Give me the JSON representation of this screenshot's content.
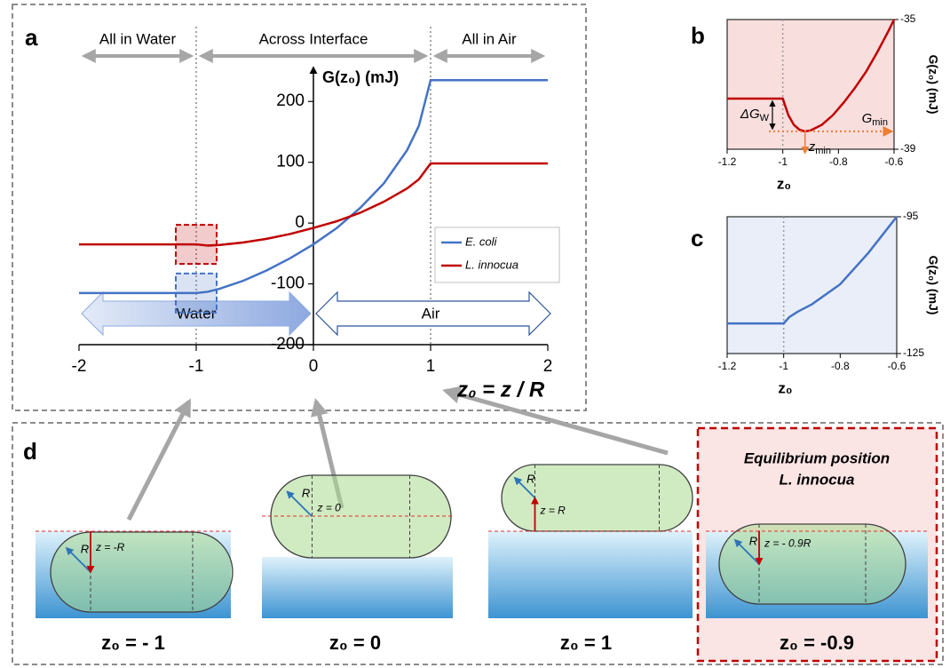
{
  "chart_data": [
    {
      "type": "line",
      "panel_label": "a",
      "y_label": "G(z₀) (mJ)",
      "x_label": "z₀ = z / R",
      "regions": [
        "All in Water",
        "Across Interface",
        "All in Air"
      ],
      "phases": [
        "Water",
        "Air"
      ],
      "x": [
        -2,
        -1,
        -0.9,
        -0.8,
        -0.6,
        -0.4,
        -0.2,
        0,
        0.2,
        0.4,
        0.6,
        0.8,
        0.9,
        1,
        2
      ],
      "series": [
        {
          "name": "E. coli",
          "color": "#4472c4",
          "values": [
            -115,
            -115,
            -113,
            -108,
            -95,
            -78,
            -58,
            -35,
            -8,
            25,
            65,
            120,
            160,
            235,
            235
          ]
        },
        {
          "name": "L. innocua",
          "color": "#c00000",
          "values": [
            -35,
            -35,
            -37,
            -36,
            -32,
            -26,
            -18,
            -8,
            3,
            17,
            35,
            57,
            72,
            98,
            98
          ]
        }
      ],
      "xlim": [
        -2,
        2
      ],
      "xticks": [
        -2,
        -1,
        0,
        1,
        2
      ],
      "ylim": [
        -200,
        250
      ],
      "yticks": [
        200,
        100,
        0,
        -100,
        -200
      ],
      "legend": "center-right"
    },
    {
      "type": "line",
      "panel_label": "b",
      "y_label": "G(z₀) (mJ)",
      "x_label": "z₀",
      "annotations": [
        {
          "main": "ΔG",
          "sub": "W"
        },
        {
          "main": "G",
          "sub": "min"
        },
        {
          "main": "z",
          "sub": "min"
        }
      ],
      "x": [
        -1.2,
        -1,
        -0.98,
        -0.96,
        -0.94,
        -0.92,
        -0.9,
        -0.86,
        -0.82,
        -0.78,
        -0.74,
        -0.7,
        -0.66,
        -0.62,
        -0.6
      ],
      "series": [
        {
          "color": "#c00000",
          "values": [
            -37.44,
            -37.44,
            -37.95,
            -38.25,
            -38.4,
            -38.45,
            -38.42,
            -38.25,
            -37.95,
            -37.55,
            -37.1,
            -36.6,
            -36.0,
            -35.35,
            -35.0
          ]
        }
      ],
      "xlim": [
        -1.2,
        -0.6
      ],
      "xticks": [
        -1.2,
        -1,
        -0.8,
        -0.6
      ],
      "ylim": [
        -39,
        -35
      ],
      "yticks": [
        -35,
        -39
      ],
      "background": "#f9dede"
    },
    {
      "type": "line",
      "panel_label": "c",
      "y_label": "G(z₀) (mJ)",
      "x_label": "z₀",
      "x": [
        -1.2,
        -1,
        -0.98,
        -0.95,
        -0.9,
        -0.8,
        -0.7,
        -0.6
      ],
      "series": [
        {
          "color": "#4472c4",
          "values": [
            -118.4,
            -118.4,
            -117,
            -115.8,
            -114.2,
            -109.8,
            -102.9,
            -95
          ]
        }
      ],
      "xlim": [
        -1.2,
        -0.6
      ],
      "xticks": [
        -1.2,
        -1,
        -0.8,
        -0.6
      ],
      "ylim": [
        -125,
        -95
      ],
      "yticks": [
        -95,
        -125
      ],
      "background": "#e9eef8"
    }
  ],
  "diagram": {
    "panel_label": "d",
    "title": [
      "Equilibrium position",
      "L. innocua"
    ],
    "cases": [
      {
        "label": "z₀ = - 1",
        "radius_label": "R",
        "height_label": "z = -R"
      },
      {
        "label": "z₀ = 0",
        "radius_label": "R",
        "height_label": "z = 0"
      },
      {
        "label": "z₀ = 1",
        "radius_label": "R",
        "height_label": "z = R"
      },
      {
        "label": "z₀ = -0.9",
        "radius_label": "R",
        "height_label": "z = - 0.9R"
      }
    ]
  }
}
